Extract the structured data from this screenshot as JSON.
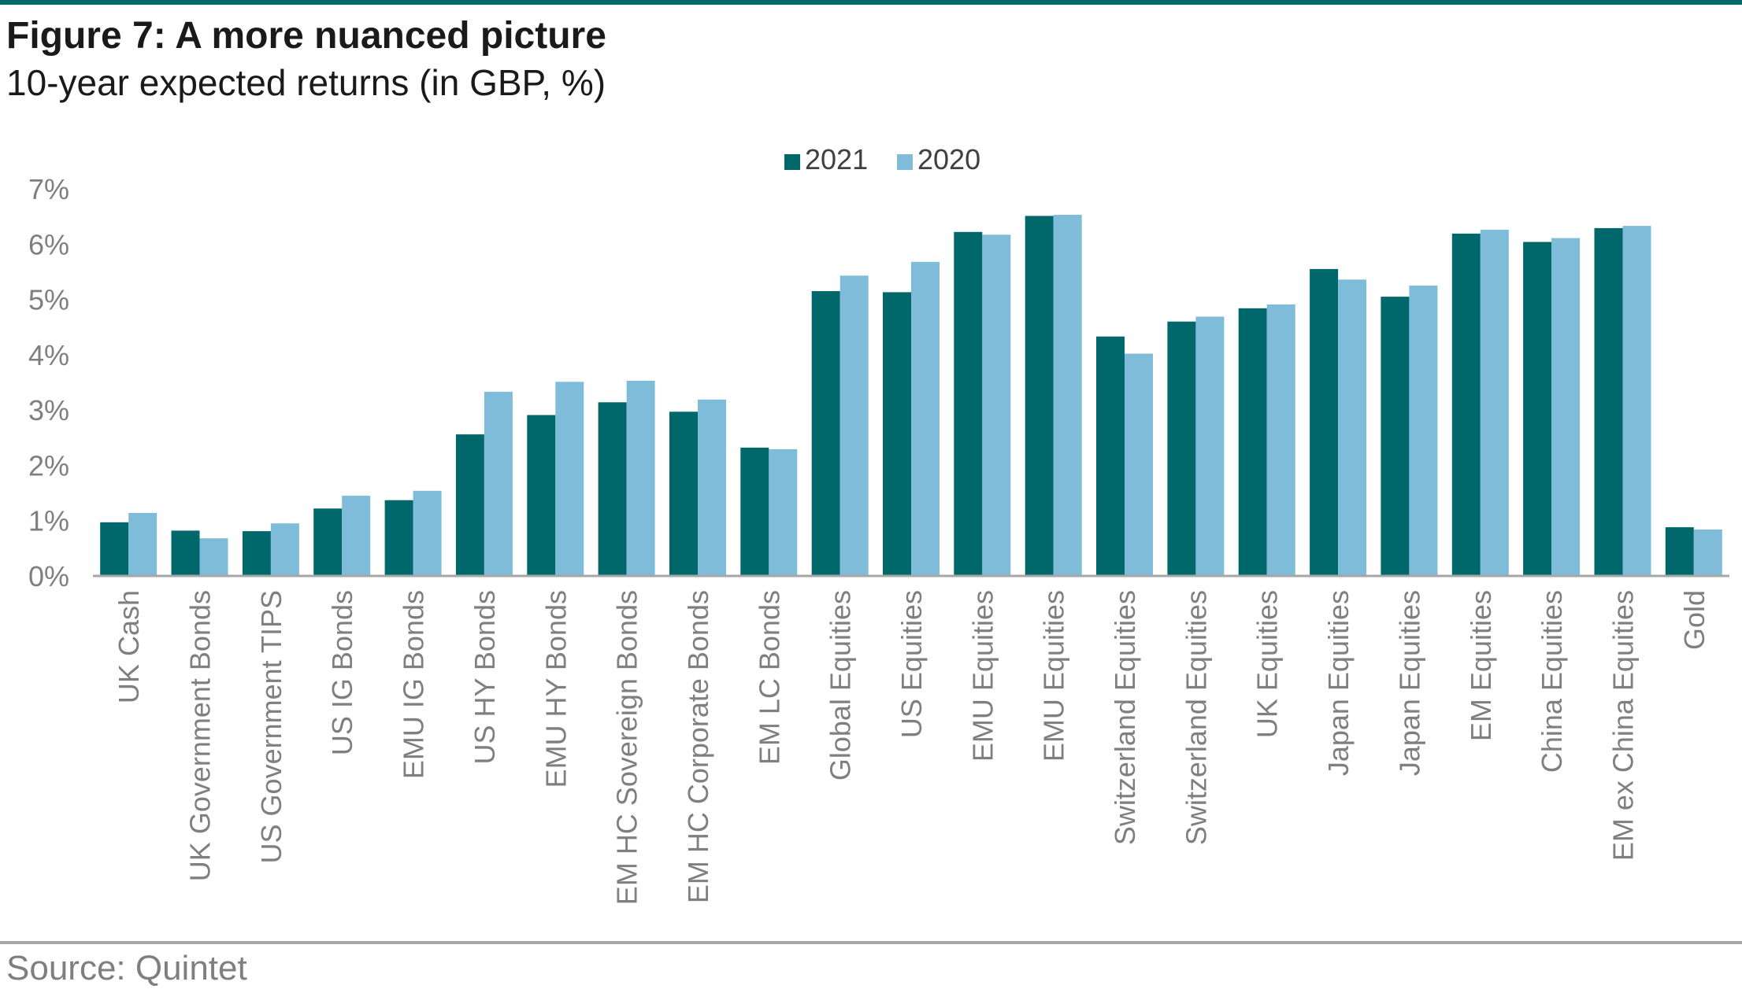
{
  "header": {
    "title": "Figure 7: A more nuanced picture",
    "subtitle": "10-year expected returns (in GBP, %)"
  },
  "footer": {
    "source": "Source: Quintet"
  },
  "colors": {
    "series_2021": "#00686a",
    "series_2020": "#7fbcd9",
    "axis": "#a6a6a6",
    "tick_text": "#7f7f7f",
    "rule": "#00686a"
  },
  "chart_data": {
    "type": "bar",
    "title": "",
    "xlabel": "",
    "ylabel": "",
    "ylim": [
      0,
      7
    ],
    "yticks": [
      "0%",
      "1%",
      "2%",
      "3%",
      "4%",
      "5%",
      "6%",
      "7%"
    ],
    "grid": false,
    "legend_position": "top-center",
    "categories": [
      "UK Cash",
      "UK Government Bonds",
      "US Government TIPS",
      "US IG Bonds",
      "EMU IG Bonds",
      "US HY Bonds",
      "EMU HY Bonds",
      "EM HC Sovereign Bonds",
      "EM HC Corporate Bonds",
      "EM LC Bonds",
      "Global Equities",
      "US Equities",
      "EMU Equities",
      "EMU Equities",
      "Switzerland Equities",
      "Switzerland Equities",
      "UK Equities",
      "Japan Equities",
      "Japan Equities",
      "EM Equities",
      "China Equities",
      "EM ex China Equities",
      "Gold"
    ],
    "series": [
      {
        "name": "2021",
        "values": [
          0.97,
          0.82,
          0.81,
          1.22,
          1.37,
          2.56,
          2.91,
          3.14,
          2.97,
          2.32,
          5.15,
          5.13,
          6.22,
          6.51,
          4.33,
          4.6,
          4.84,
          5.55,
          5.05,
          6.19,
          6.04,
          6.29,
          0.88
        ]
      },
      {
        "name": "2020",
        "values": [
          1.14,
          0.68,
          0.95,
          1.45,
          1.54,
          3.33,
          3.51,
          3.53,
          3.19,
          2.29,
          5.43,
          5.68,
          6.17,
          6.53,
          4.02,
          4.69,
          4.91,
          5.36,
          5.25,
          6.26,
          6.11,
          6.33,
          0.84
        ]
      }
    ]
  }
}
